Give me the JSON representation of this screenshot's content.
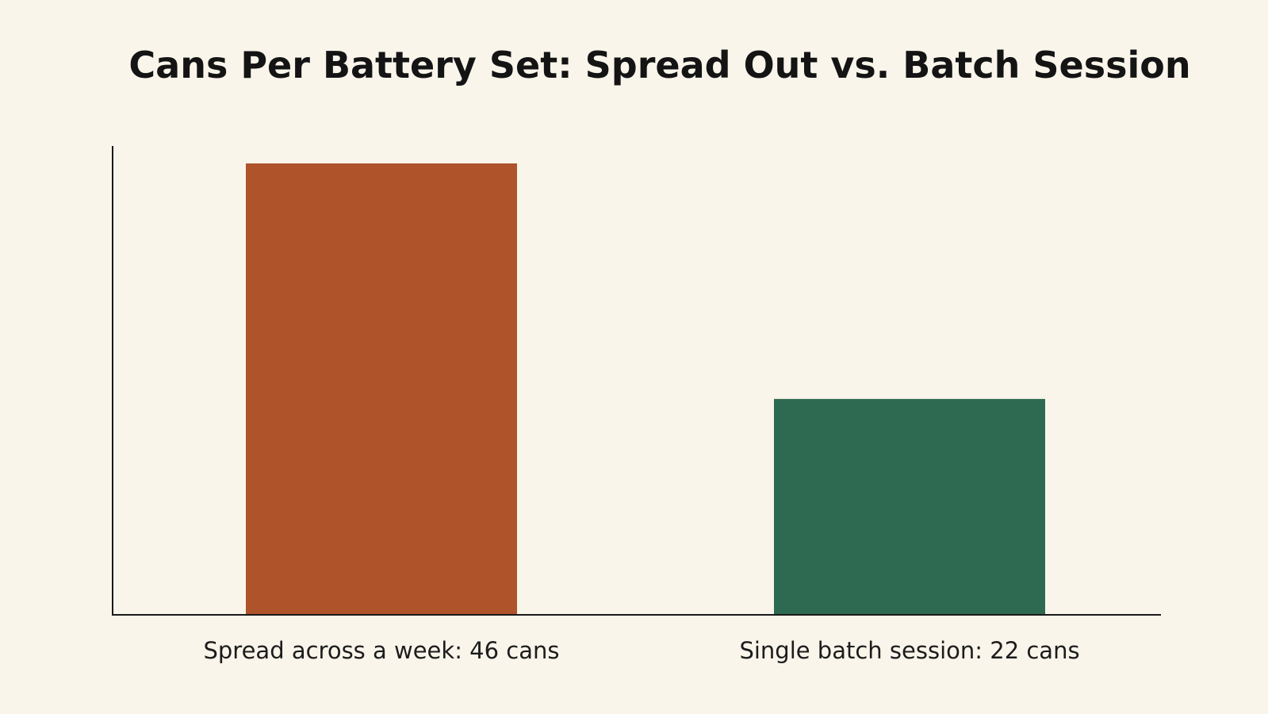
{
  "chart_data": {
    "type": "bar",
    "title": "Cans Per Battery Set: Spread Out vs. Batch Session",
    "xlabel": "",
    "ylabel": "",
    "categories": [
      "Spread across a week: 46 cans",
      "Single batch session: 22 cans"
    ],
    "values": [
      46,
      22
    ],
    "ylim": [
      0,
      46
    ],
    "grid": false,
    "legend": "none",
    "colors": [
      "#af532a",
      "#2e6a51"
    ]
  }
}
